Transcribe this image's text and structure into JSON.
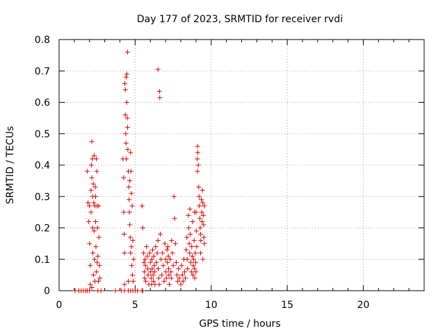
{
  "chart_data": {
    "type": "scatter",
    "title": "Day 177 of 2023, SRMTID for receiver rvdi",
    "xlabel": "GPS time / hours",
    "ylabel": "SRMTID / TECUs",
    "xlim": [
      0,
      24
    ],
    "ylim": [
      0,
      0.8
    ],
    "xticks": [
      "0",
      "5",
      "10",
      "15",
      "20"
    ],
    "xtick_values": [
      0,
      5,
      10,
      15,
      20
    ],
    "yticks": [
      "0",
      "0.1",
      "0.2",
      "0.3",
      "0.4",
      "0.5",
      "0.6",
      "0.7",
      "0.8"
    ],
    "ytick_values": [
      0,
      0.1,
      0.2,
      0.3,
      0.4,
      0.5,
      0.6,
      0.7,
      0.8
    ],
    "grid": true,
    "marker": "+",
    "color": "#dd0000",
    "series": [
      {
        "points": [
          [
            1.05,
            0
          ],
          [
            1.3,
            0
          ],
          [
            1.45,
            0
          ],
          [
            1.6,
            0
          ],
          [
            1.75,
            0
          ],
          [
            1.85,
            0
          ],
          [
            2.0,
            0
          ],
          [
            2.55,
            0
          ],
          [
            2.75,
            0
          ],
          [
            1.85,
            0.38
          ],
          [
            1.9,
            0.28
          ],
          [
            1.95,
            0.22
          ],
          [
            2.0,
            0.27
          ],
          [
            2.0,
            0.15
          ],
          [
            2.05,
            0.08
          ],
          [
            2.05,
            0.02
          ],
          [
            2.1,
            0.32
          ],
          [
            2.1,
            0.25
          ],
          [
            2.12,
            0.4
          ],
          [
            2.15,
            0.475
          ],
          [
            2.15,
            0.36
          ],
          [
            2.18,
            0.42
          ],
          [
            2.2,
            0.3
          ],
          [
            2.2,
            0.2
          ],
          [
            2.22,
            0.12
          ],
          [
            2.25,
            0.05
          ],
          [
            2.25,
            0.34
          ],
          [
            2.28,
            0.28
          ],
          [
            2.3,
            0.43
          ],
          [
            2.3,
            0.19
          ],
          [
            2.32,
            0.1
          ],
          [
            2.35,
            0.27
          ],
          [
            2.38,
            0.33
          ],
          [
            2.4,
            0.22
          ],
          [
            2.42,
            0.14
          ],
          [
            2.45,
            0.42
          ],
          [
            2.45,
            0.06
          ],
          [
            2.48,
            0.38
          ],
          [
            2.5,
            0.27
          ],
          [
            2.52,
            0.2
          ],
          [
            2.55,
            0.11
          ],
          [
            2.58,
            0.03
          ],
          [
            2.6,
            0.27
          ],
          [
            2.62,
            0.17
          ],
          [
            2.65,
            0.08
          ],
          [
            2.68,
            0.04
          ],
          [
            2.15,
            0.01
          ],
          [
            2.35,
            0.03
          ],
          [
            2.4,
            0.3
          ],
          [
            2.5,
            0.09
          ],
          [
            3.7,
            0
          ],
          [
            4.1,
            0
          ],
          [
            4.3,
            0
          ],
          [
            4.55,
            0
          ],
          [
            4.7,
            0
          ],
          [
            4.85,
            0
          ],
          [
            5.0,
            0
          ],
          [
            5.15,
            0
          ],
          [
            5.45,
            0
          ],
          [
            5.5,
            0
          ],
          [
            4.2,
            0.42
          ],
          [
            4.25,
            0.36
          ],
          [
            4.25,
            0.25
          ],
          [
            4.28,
            0.18
          ],
          [
            4.3,
            0.12
          ],
          [
            4.3,
            0.02
          ],
          [
            4.32,
            0.66
          ],
          [
            4.35,
            0.64
          ],
          [
            4.35,
            0.56
          ],
          [
            4.38,
            0.5
          ],
          [
            4.4,
            0.68
          ],
          [
            4.4,
            0.47
          ],
          [
            4.42,
            0.42
          ],
          [
            4.45,
            0.69
          ],
          [
            4.45,
            0.6
          ],
          [
            4.48,
            0.55
          ],
          [
            4.5,
            0.76
          ],
          [
            4.5,
            0.52
          ],
          [
            4.52,
            0.45
          ],
          [
            4.55,
            0.38
          ],
          [
            4.58,
            0.33
          ],
          [
            4.6,
            0.29
          ],
          [
            4.62,
            0.25
          ],
          [
            4.65,
            0.21
          ],
          [
            4.68,
            0.17
          ],
          [
            4.7,
            0.44
          ],
          [
            4.7,
            0.12
          ],
          [
            4.72,
            0.38
          ],
          [
            4.75,
            0.31
          ],
          [
            4.78,
            0.08
          ],
          [
            4.8,
            0.27
          ],
          [
            4.82,
            0.05
          ],
          [
            4.85,
            0.16
          ],
          [
            4.88,
            0.03
          ],
          [
            4.9,
            0.1
          ],
          [
            4.55,
            0.03
          ],
          [
            4.65,
            0.35
          ],
          [
            4.75,
            0.14
          ],
          [
            5.45,
            0.27
          ],
          [
            5.5,
            0.2
          ],
          [
            5.55,
            0.12
          ],
          [
            5.58,
            0.09
          ],
          [
            5.6,
            0.06
          ],
          [
            5.62,
            0.04
          ],
          [
            5.65,
            0.1
          ],
          [
            5.68,
            0.08
          ],
          [
            5.7,
            0.03
          ],
          [
            5.75,
            0.14
          ],
          [
            5.8,
            0.11
          ],
          [
            5.82,
            0.07
          ],
          [
            5.85,
            0.05
          ],
          [
            5.9,
            0.02
          ],
          [
            5.95,
            0.12
          ],
          [
            6.0,
            0.09
          ],
          [
            6.02,
            0.06
          ],
          [
            6.05,
            0.04
          ],
          [
            6.08,
            0.02
          ],
          [
            6.1,
            0.1
          ],
          [
            6.12,
            0.07
          ],
          [
            6.15,
            0.13
          ],
          [
            6.18,
            0.05
          ],
          [
            6.2,
            0.03
          ],
          [
            6.22,
            0.11
          ],
          [
            6.25,
            0.08
          ],
          [
            6.28,
            0.06
          ],
          [
            6.3,
            0.02
          ],
          [
            6.35,
            0.14
          ],
          [
            6.4,
            0.09
          ],
          [
            6.45,
            0.12
          ],
          [
            6.5,
            0.16
          ],
          [
            6.52,
            0.07
          ],
          [
            6.55,
            0.04
          ],
          [
            6.58,
            0.02
          ],
          [
            6.5,
            0.705
          ],
          [
            6.6,
            0.635
          ],
          [
            6.62,
            0.615
          ],
          [
            6.65,
            0.18
          ],
          [
            6.7,
            0.1
          ],
          [
            6.75,
            0.05
          ],
          [
            6.8,
            0.12
          ],
          [
            6.85,
            0.08
          ],
          [
            6.9,
            0.03
          ],
          [
            6.95,
            0.15
          ],
          [
            7.0,
            0.1
          ],
          [
            7.02,
            0.06
          ],
          [
            7.05,
            0.04
          ],
          [
            7.1,
            0.13
          ],
          [
            7.12,
            0.09
          ],
          [
            7.15,
            0.14
          ],
          [
            7.18,
            0.11
          ],
          [
            7.2,
            0.07
          ],
          [
            7.22,
            0.05
          ],
          [
            7.25,
            0.02
          ],
          [
            7.3,
            0.1
          ],
          [
            7.35,
            0.06
          ],
          [
            7.38,
            0.04
          ],
          [
            7.4,
            0.16
          ],
          [
            7.45,
            0.12
          ],
          [
            7.5,
            0.08
          ],
          [
            7.55,
            0.3
          ],
          [
            7.6,
            0.23
          ],
          [
            7.65,
            0.15
          ],
          [
            7.7,
            0.09
          ],
          [
            7.75,
            0.05
          ],
          [
            7.8,
            0.03
          ],
          [
            7.85,
            0.07
          ],
          [
            7.9,
            0.04
          ],
          [
            8.0,
            0.02
          ],
          [
            8.05,
            0.08
          ],
          [
            8.1,
            0.05
          ],
          [
            8.15,
            0.03
          ],
          [
            8.2,
            0.1
          ],
          [
            8.25,
            0.06
          ],
          [
            8.3,
            0.04
          ],
          [
            8.35,
            0.13
          ],
          [
            8.4,
            0.17
          ],
          [
            8.42,
            0.1
          ],
          [
            8.45,
            0.07
          ],
          [
            8.5,
            0.24
          ],
          [
            8.52,
            0.2
          ],
          [
            8.55,
            0.15
          ],
          [
            8.58,
            0.12
          ],
          [
            8.6,
            0.26
          ],
          [
            8.62,
            0.18
          ],
          [
            8.65,
            0.09
          ],
          [
            8.7,
            0.06
          ],
          [
            8.72,
            0.14
          ],
          [
            8.75,
            0.11
          ],
          [
            8.78,
            0.22
          ],
          [
            8.8,
            0.05
          ],
          [
            8.82,
            0.08
          ],
          [
            8.85,
            0.1
          ],
          [
            8.88,
            0.16
          ],
          [
            8.9,
            0.07
          ],
          [
            8.92,
            0.04
          ],
          [
            8.95,
            0.12
          ],
          [
            8.98,
            0.09
          ],
          [
            9.0,
            0.25
          ],
          [
            9.02,
            0.19
          ],
          [
            9.05,
            0.14
          ],
          [
            9.08,
            0.42
          ],
          [
            9.1,
            0.46
          ],
          [
            9.12,
            0.44
          ],
          [
            9.15,
            0.4
          ],
          [
            9.18,
            0.33
          ],
          [
            9.2,
            0.3
          ],
          [
            9.22,
            0.27
          ],
          [
            9.25,
            0.23
          ],
          [
            9.28,
            0.2
          ],
          [
            9.3,
            0.18
          ],
          [
            9.32,
            0.16
          ],
          [
            9.35,
            0.29
          ],
          [
            9.38,
            0.25
          ],
          [
            9.4,
            0.22
          ],
          [
            9.42,
            0.32
          ],
          [
            9.45,
            0.28
          ],
          [
            9.48,
            0.24
          ],
          [
            9.5,
            0.21
          ],
          [
            9.52,
            0.17
          ],
          [
            9.55,
            0.15
          ],
          [
            9.55,
            0.27
          ],
          [
            9.1,
            0.38
          ],
          [
            9.3,
            0.12
          ],
          [
            9.45,
            0.1
          ],
          [
            8.9,
            0.25
          ],
          [
            9.0,
            0.06
          ]
        ]
      }
    ]
  }
}
